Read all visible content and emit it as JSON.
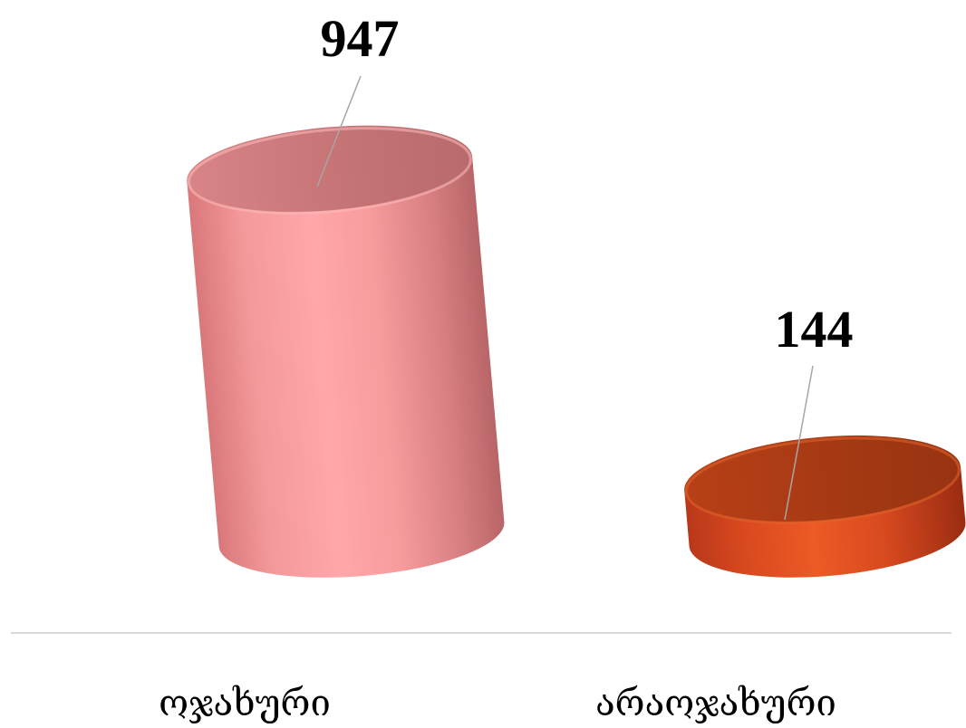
{
  "chart_data": {
    "type": "bar",
    "style": "3d-cylinder",
    "categories": [
      "ოჯახური",
      "არაოჯახური"
    ],
    "values": [
      947,
      144
    ],
    "data_labels": [
      "947",
      "144"
    ],
    "colors": [
      "#f08a8c",
      "#c8401a"
    ],
    "ylim": [
      0,
      1000
    ],
    "grid": false,
    "legend": "none"
  }
}
